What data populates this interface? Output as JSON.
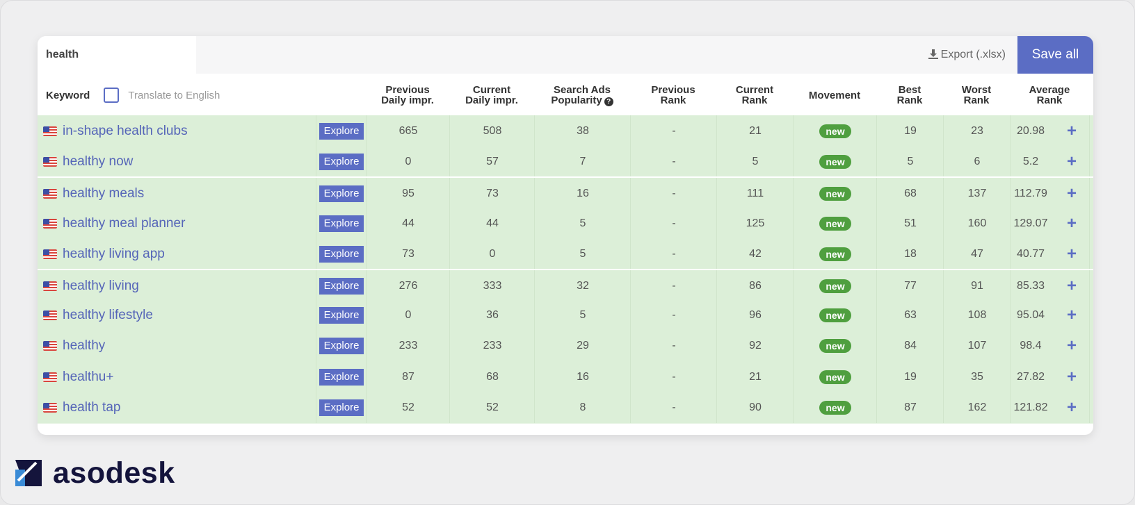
{
  "search": {
    "value": "health"
  },
  "toolbar": {
    "export_label": "Export (.xlsx)",
    "save_label": "Save all"
  },
  "columns": {
    "keyword": "Keyword",
    "translate": "Translate to English",
    "prev_impr": "Previous\nDaily impr.",
    "cur_impr": "Current\nDaily impr.",
    "popularity": "Search Ads\nPopularity",
    "prev_rank": "Previous\nRank",
    "cur_rank": "Current\nRank",
    "movement": "Movement",
    "best": "Best\nRank",
    "worst": "Worst\nRank",
    "avg": "Average\nRank"
  },
  "explore_label": "Explore",
  "rows": [
    {
      "keyword": "in-shape health clubs",
      "prev_impr": "665",
      "cur_impr": "508",
      "popularity": "38",
      "prev_rank": "-",
      "cur_rank": "21",
      "movement": "new",
      "best": "19",
      "worst": "23",
      "avg": "20.98"
    },
    {
      "keyword": "healthy now",
      "prev_impr": "0",
      "cur_impr": "57",
      "popularity": "7",
      "prev_rank": "-",
      "cur_rank": "5",
      "movement": "new",
      "best": "5",
      "worst": "6",
      "avg": "5.2"
    },
    {
      "keyword": "healthy meals",
      "prev_impr": "95",
      "cur_impr": "73",
      "popularity": "16",
      "prev_rank": "-",
      "cur_rank": "111",
      "movement": "new",
      "best": "68",
      "worst": "137",
      "avg": "112.79"
    },
    {
      "keyword": "healthy meal planner",
      "prev_impr": "44",
      "cur_impr": "44",
      "popularity": "5",
      "prev_rank": "-",
      "cur_rank": "125",
      "movement": "new",
      "best": "51",
      "worst": "160",
      "avg": "129.07"
    },
    {
      "keyword": "healthy living app",
      "prev_impr": "73",
      "cur_impr": "0",
      "popularity": "5",
      "prev_rank": "-",
      "cur_rank": "42",
      "movement": "new",
      "best": "18",
      "worst": "47",
      "avg": "40.77"
    },
    {
      "keyword": "healthy living",
      "prev_impr": "276",
      "cur_impr": "333",
      "popularity": "32",
      "prev_rank": "-",
      "cur_rank": "86",
      "movement": "new",
      "best": "77",
      "worst": "91",
      "avg": "85.33"
    },
    {
      "keyword": "healthy lifestyle",
      "prev_impr": "0",
      "cur_impr": "36",
      "popularity": "5",
      "prev_rank": "-",
      "cur_rank": "96",
      "movement": "new",
      "best": "63",
      "worst": "108",
      "avg": "95.04"
    },
    {
      "keyword": "healthy",
      "prev_impr": "233",
      "cur_impr": "233",
      "popularity": "29",
      "prev_rank": "-",
      "cur_rank": "92",
      "movement": "new",
      "best": "84",
      "worst": "107",
      "avg": "98.4"
    },
    {
      "keyword": "healthu+",
      "prev_impr": "87",
      "cur_impr": "68",
      "popularity": "16",
      "prev_rank": "-",
      "cur_rank": "21",
      "movement": "new",
      "best": "19",
      "worst": "35",
      "avg": "27.82"
    },
    {
      "keyword": "health tap",
      "prev_impr": "52",
      "cur_impr": "52",
      "popularity": "8",
      "prev_rank": "-",
      "cur_rank": "90",
      "movement": "new",
      "best": "87",
      "worst": "162",
      "avg": "121.82"
    }
  ],
  "row_action": "+",
  "brand": {
    "name": "asodesk"
  },
  "icons": [
    "download-icon",
    "help-icon",
    "us-flag-icon",
    "plus-icon",
    "asodesk-logo-icon"
  ],
  "colors": {
    "accent": "#5b6dc4",
    "row_bg": "#dcefd8",
    "badge": "#4f9f3f",
    "brand": "#14143c"
  }
}
